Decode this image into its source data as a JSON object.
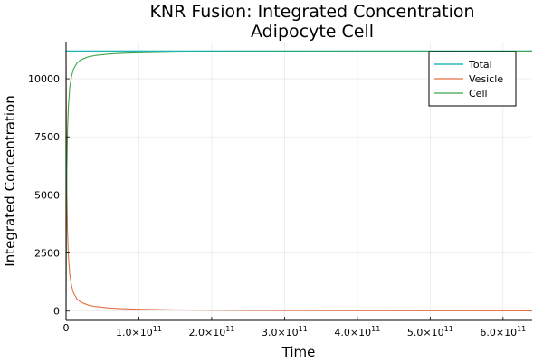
{
  "chart_data": {
    "type": "line",
    "title": [
      "KNR Fusion: Integrated Concentration",
      "Adipocyte Cell"
    ],
    "xlabel": "Time",
    "ylabel": "Integrated Concentration",
    "xlim": [
      0,
      640000000000
    ],
    "ylim": [
      -400,
      11600
    ],
    "grid": true,
    "legend_position": "top-right",
    "x_ticks": [
      {
        "value": 0,
        "mantissa": "0",
        "exponent": ""
      },
      {
        "value": 100000000000,
        "mantissa": "1.0×10",
        "exponent": "11"
      },
      {
        "value": 200000000000,
        "mantissa": "2.0×10",
        "exponent": "11"
      },
      {
        "value": 300000000000,
        "mantissa": "3.0×10",
        "exponent": "11"
      },
      {
        "value": 400000000000,
        "mantissa": "4.0×10",
        "exponent": "11"
      },
      {
        "value": 500000000000,
        "mantissa": "5.0×10",
        "exponent": "11"
      },
      {
        "value": 600000000000,
        "mantissa": "6.0×10",
        "exponent": "11"
      }
    ],
    "y_ticks": [
      {
        "value": 0,
        "label": "0"
      },
      {
        "value": 2500,
        "label": "2500"
      },
      {
        "value": 5000,
        "label": "5000"
      },
      {
        "value": 7500,
        "label": "7500"
      },
      {
        "value": 10000,
        "label": "10000"
      }
    ],
    "series": [
      {
        "name": "Total",
        "color": "#00a9ad",
        "x": [
          0,
          640000000000
        ],
        "y": [
          11200,
          11200
        ]
      },
      {
        "name": "Vesicle",
        "color": "#e26f46",
        "x": [
          0,
          500000000,
          1000000000,
          2000000000,
          3000000000,
          5000000000,
          7500000000,
          10000000000,
          15000000000,
          20000000000,
          30000000000,
          40000000000,
          60000000000,
          80000000000,
          100000000000,
          150000000000,
          200000000000,
          300000000000,
          400000000000,
          500000000000,
          640000000000
        ],
        "y": [
          11200,
          7500,
          5400,
          3450,
          2500,
          1600,
          1100,
          800,
          520,
          390,
          260,
          195,
          130,
          98,
          78,
          52,
          39,
          26,
          20,
          16,
          12
        ]
      },
      {
        "name": "Cell",
        "color": "#3da44d",
        "x": [
          0,
          500000000,
          1000000000,
          2000000000,
          3000000000,
          5000000000,
          7500000000,
          10000000000,
          15000000000,
          20000000000,
          30000000000,
          40000000000,
          60000000000,
          80000000000,
          100000000000,
          150000000000,
          200000000000,
          300000000000,
          400000000000,
          500000000000,
          640000000000
        ],
        "y": [
          0,
          3700,
          5800,
          7750,
          8700,
          9600,
          10100,
          10400,
          10680,
          10810,
          10940,
          11005,
          11070,
          11102,
          11122,
          11148,
          11161,
          11174,
          11180,
          11184,
          11188
        ]
      }
    ]
  }
}
